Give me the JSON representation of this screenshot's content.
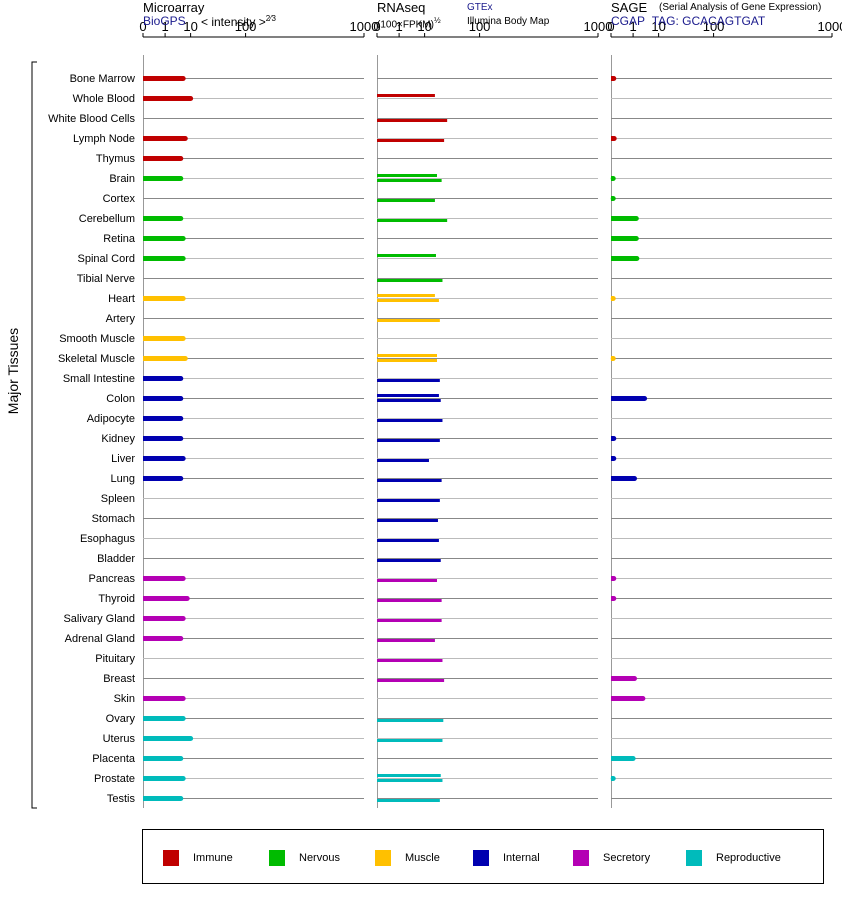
{
  "panels": {
    "microarray": {
      "title": "Microarray",
      "source": "BioGPS",
      "metric": "< intensity >",
      "exponent": "2⁄3"
    },
    "rnaseq": {
      "title": "RNAseq",
      "unit": "(100×FPKM)",
      "exponent": "½",
      "source1": "GTEx",
      "source2": "Illumina Body Map"
    },
    "sage": {
      "title": "SAGE",
      "desc": "(Serial Analysis of Gene Expression)",
      "source": "CGAP",
      "tag": "TAG: GCACAGTGAT"
    }
  },
  "axis_label": "Major Tissues",
  "legend": [
    {
      "label": "Immune",
      "color": "#c00000"
    },
    {
      "label": "Nervous",
      "color": "#00bb00"
    },
    {
      "label": "Muscle",
      "color": "#ffc000"
    },
    {
      "label": "Internal",
      "color": "#0000b0"
    },
    {
      "label": "Secretory",
      "color": "#b400b4"
    },
    {
      "label": "Reproductive",
      "color": "#00bbbb"
    }
  ],
  "chart_data": {
    "type": "bar",
    "ticks": [
      0,
      1,
      10,
      100,
      1000
    ],
    "scale": "power",
    "categories": [
      "Bone Marrow",
      "Whole Blood",
      "White Blood Cells",
      "Lymph Node",
      "Thymus",
      "Brain",
      "Cortex",
      "Cerebellum",
      "Retina",
      "Spinal Cord",
      "Tibial Nerve",
      "Heart",
      "Artery",
      "Smooth Muscle",
      "Skeletal Muscle",
      "Small Intestine",
      "Colon",
      "Adipocyte",
      "Kidney",
      "Liver",
      "Lung",
      "Spleen",
      "Stomach",
      "Esophagus",
      "Bladder",
      "Pancreas",
      "Thyroid",
      "Salivary Gland",
      "Adrenal Gland",
      "Pituitary",
      "Breast",
      "Skin",
      "Ovary",
      "Uterus",
      "Placenta",
      "Prostate",
      "Testis"
    ],
    "groups": [
      "Immune",
      "Immune",
      "Immune",
      "Immune",
      "Immune",
      "Nervous",
      "Nervous",
      "Nervous",
      "Nervous",
      "Nervous",
      "Nervous",
      "Muscle",
      "Muscle",
      "Muscle",
      "Muscle",
      "Internal",
      "Internal",
      "Internal",
      "Internal",
      "Internal",
      "Internal",
      "Internal",
      "Internal",
      "Internal",
      "Internal",
      "Secretory",
      "Secretory",
      "Secretory",
      "Secretory",
      "Secretory",
      "Secretory",
      "Secretory",
      "Reproductive",
      "Reproductive",
      "Reproductive",
      "Reproductive",
      "Reproductive"
    ],
    "series": [
      {
        "name": "Microarray",
        "values": [
          6,
          10,
          null,
          7,
          5,
          5,
          null,
          5,
          6,
          6,
          null,
          6,
          null,
          6,
          7,
          5,
          5,
          5,
          5,
          6,
          5,
          null,
          null,
          null,
          null,
          6,
          8,
          6,
          5,
          null,
          null,
          6,
          6,
          10,
          5,
          6,
          5
        ]
      },
      {
        "name": "GTEx",
        "values": [
          null,
          18,
          null,
          null,
          null,
          20,
          null,
          null,
          null,
          19,
          null,
          18,
          null,
          null,
          20,
          null,
          22,
          null,
          null,
          null,
          null,
          null,
          null,
          null,
          null,
          null,
          null,
          null,
          null,
          null,
          null,
          null,
          null,
          null,
          null,
          24,
          null
        ]
      },
      {
        "name": "Illumina Body Map",
        "values": [
          null,
          null,
          32,
          28,
          null,
          25,
          18,
          32,
          null,
          null,
          26,
          22,
          23,
          null,
          20,
          23,
          24,
          26,
          23,
          13,
          25,
          23,
          21,
          22,
          24,
          20,
          25,
          25,
          18,
          26,
          28,
          null,
          27,
          26,
          null,
          26,
          23
        ]
      },
      {
        "name": "SAGE",
        "values": [
          0.002,
          null,
          null,
          0.003,
          null,
          0.001,
          0.001,
          1.5,
          1.5,
          1.6,
          null,
          0.001,
          null,
          null,
          0.001,
          null,
          3.5,
          null,
          0.002,
          0.002,
          1.2,
          null,
          null,
          null,
          null,
          0.002,
          0.002,
          null,
          null,
          null,
          1.2,
          3,
          null,
          null,
          1,
          0.001,
          null
        ]
      }
    ]
  }
}
